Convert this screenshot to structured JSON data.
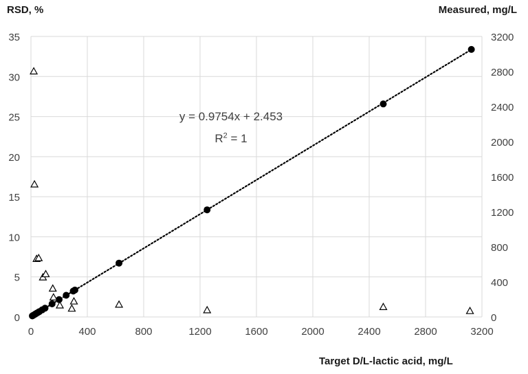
{
  "chart_data": {
    "type": "scatter",
    "xlabel": "Target D/L-lactic acid, mg/L",
    "ylabel_left": "RSD, %",
    "ylabel_right": "Measured, mg/L",
    "x_ticks": [
      "0",
      "400",
      "800",
      "1200",
      "1600",
      "2000",
      "2400",
      "2800",
      "3200"
    ],
    "y_left_ticks": [
      "0",
      "5",
      "10",
      "15",
      "20",
      "25",
      "30",
      "35"
    ],
    "y_right_ticks": [
      "0",
      "400",
      "800",
      "1200",
      "1600",
      "2000",
      "2400",
      "2800",
      "3200"
    ],
    "xlim": [
      0,
      3200
    ],
    "ylim_left": [
      0,
      35
    ],
    "ylim_right": [
      0,
      3200
    ],
    "grid": true,
    "series": [
      {
        "axis": "right",
        "marker": "filled-circle",
        "points": [
          [
            10,
            12
          ],
          [
            20,
            22
          ],
          [
            30,
            32
          ],
          [
            40,
            42
          ],
          [
            50,
            51
          ],
          [
            60,
            61
          ],
          [
            80,
            81
          ],
          [
            100,
            100
          ],
          [
            150,
            149
          ],
          [
            200,
            198
          ],
          [
            250,
            247
          ],
          [
            300,
            295
          ],
          [
            312,
            307
          ],
          [
            625,
            614
          ],
          [
            1250,
            1222
          ],
          [
            2500,
            2430
          ],
          [
            3125,
            3052
          ]
        ]
      },
      {
        "axis": "left",
        "marker": "open-triangle",
        "points": [
          [
            20,
            30.7
          ],
          [
            25,
            16.6
          ],
          [
            40,
            7.3
          ],
          [
            55,
            7.4
          ],
          [
            85,
            5.0
          ],
          [
            105,
            5.4
          ],
          [
            155,
            3.6
          ],
          [
            160,
            2.5
          ],
          [
            205,
            1.5
          ],
          [
            290,
            1.1
          ],
          [
            305,
            2.0
          ],
          [
            625,
            1.6
          ],
          [
            1250,
            0.9
          ],
          [
            2500,
            1.3
          ],
          [
            3115,
            0.8
          ]
        ]
      }
    ],
    "trendline": {
      "style": "dotted",
      "slope": 0.9754,
      "intercept": 2.453,
      "x_range": [
        0,
        3125
      ]
    },
    "annotations": {
      "equation": "y = 0.9754x + 2.453",
      "r2_prefix": "R",
      "r2_sup": "2",
      "r2_suffix": " = 1"
    },
    "colors": {
      "grid": "#d9d9d9",
      "marker": "#000000",
      "text": "#404040"
    }
  }
}
